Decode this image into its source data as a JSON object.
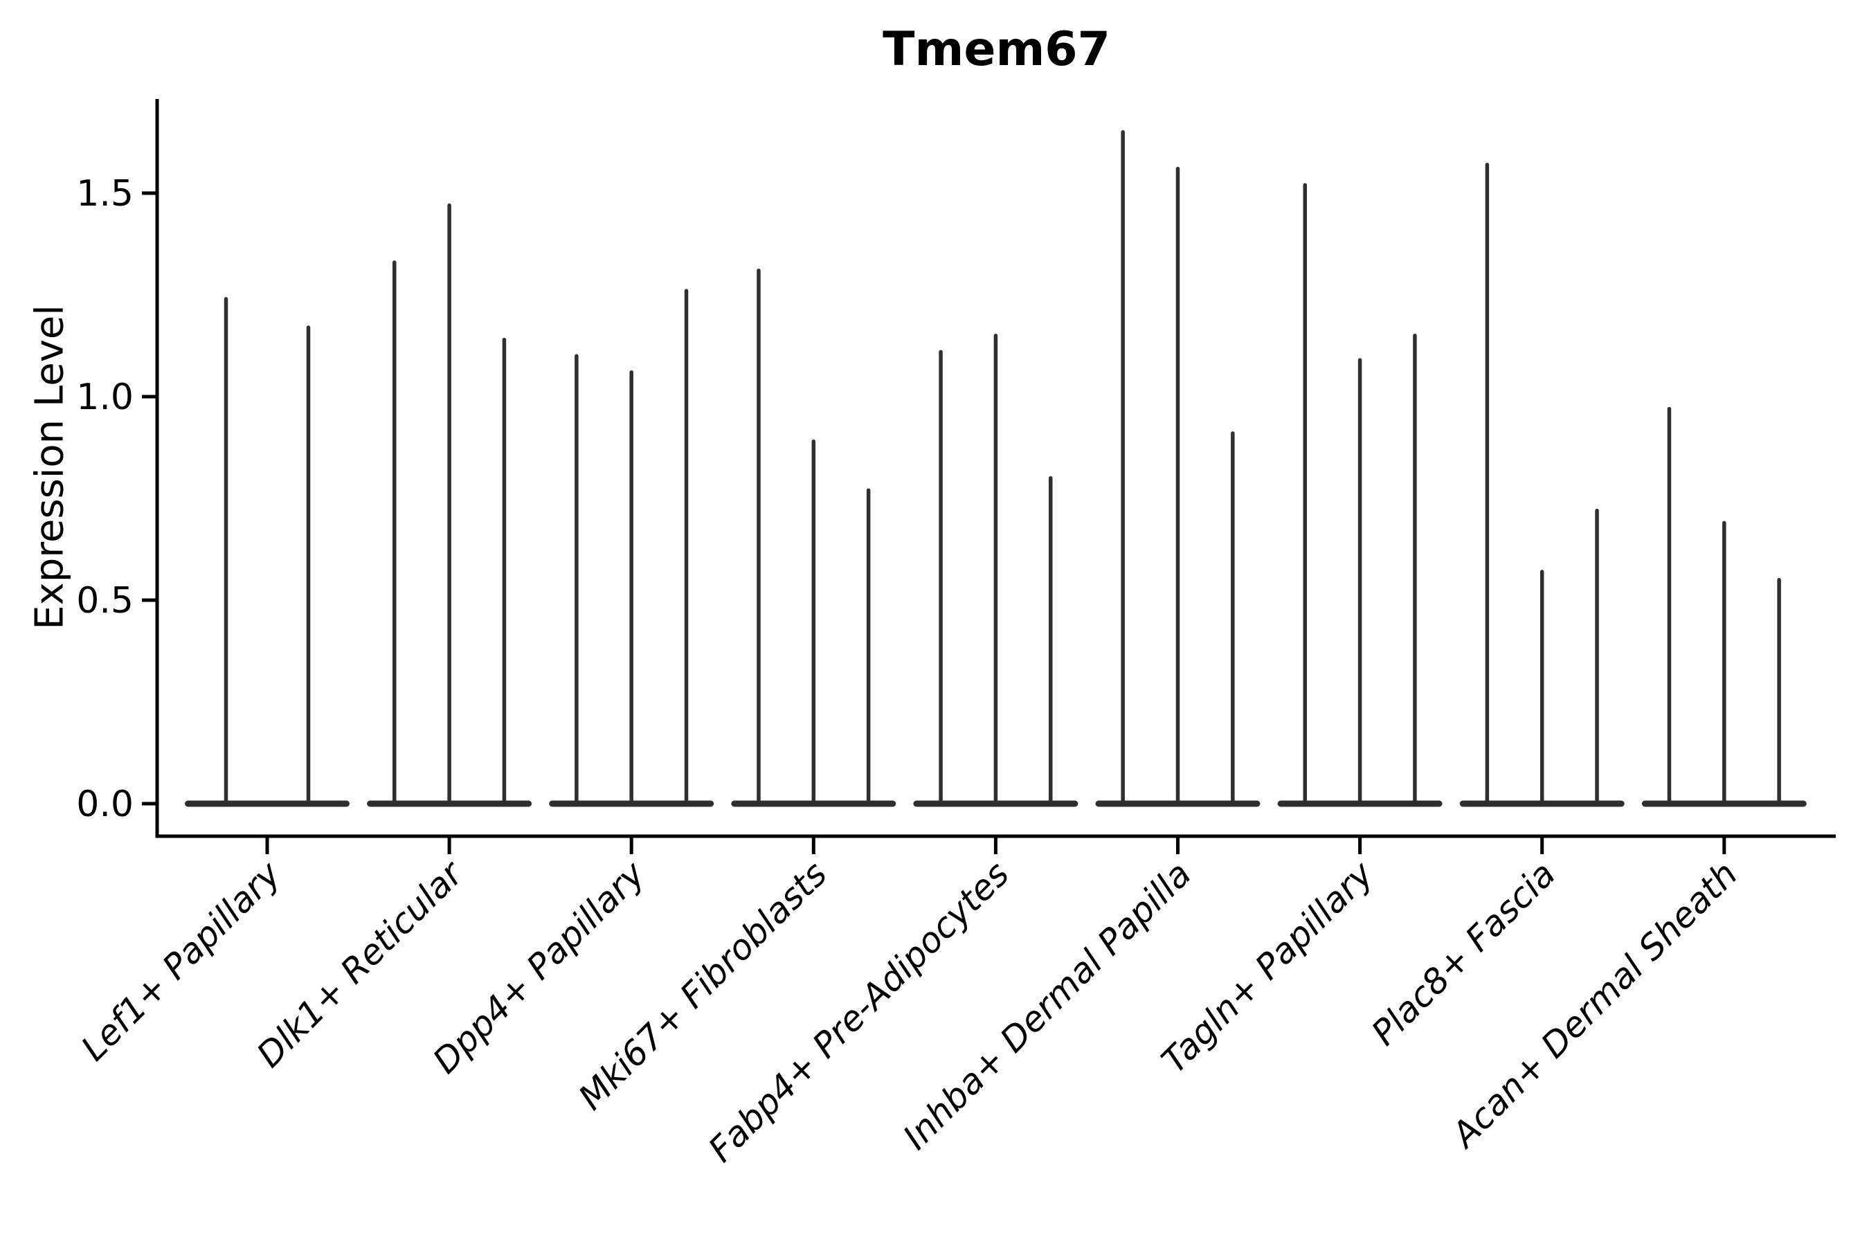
{
  "chart_data": {
    "type": "violin",
    "title": "Tmem67",
    "ylabel": "Expression Level",
    "xlabel": "",
    "legend": false,
    "grid": false,
    "background_color": "#ffffff",
    "axis_color": "#000000",
    "violin_color": "#2f2f2f",
    "ylim": [
      0.0,
      1.73
    ],
    "yticks": [
      0.0,
      0.5,
      1.0,
      1.5
    ],
    "ytick_labels": [
      "0.0",
      "0.5",
      "1.0",
      "1.5"
    ],
    "xtick_label_style": "italic, rotated 45deg, right-anchored",
    "violin_shape_note": "each violin has nearly all density in a flat blob at expression 0 with a thin spike tail rising to the listed maximum",
    "categories": [
      "Lef1+ Papillary",
      "Dlk1+ Reticular",
      "Dpp4+ Papillary",
      "Mki67+ Fibroblasts",
      "Fabp4+ Pre-Adipocytes",
      "Inhba+ Dermal Papilla",
      "Tagln+ Papillary",
      "Plac8+ Fascia",
      "Acan+ Dermal Sheath"
    ],
    "groups": [
      {
        "label": "Lef1+ Papillary",
        "violin_maxima": [
          1.24,
          1.17
        ]
      },
      {
        "label": "Dlk1+ Reticular",
        "violin_maxima": [
          1.33,
          1.47,
          1.14
        ]
      },
      {
        "label": "Dpp4+ Papillary",
        "violin_maxima": [
          1.1,
          1.06,
          1.26
        ]
      },
      {
        "label": "Mki67+ Fibroblasts",
        "violin_maxima": [
          1.31,
          0.89,
          0.77
        ]
      },
      {
        "label": "Fabp4+ Pre-Adipocytes",
        "violin_maxima": [
          1.11,
          1.15,
          0.8
        ]
      },
      {
        "label": "Inhba+ Dermal Papilla",
        "violin_maxima": [
          1.65,
          1.56,
          0.91
        ]
      },
      {
        "label": "Tagln+ Papillary",
        "violin_maxima": [
          1.52,
          1.09,
          1.15
        ]
      },
      {
        "label": "Plac8+ Fascia",
        "violin_maxima": [
          1.57,
          0.57,
          0.72
        ]
      },
      {
        "label": "Acan+ Dermal Sheath",
        "violin_maxima": [
          0.97,
          0.69,
          0.55
        ]
      }
    ]
  }
}
